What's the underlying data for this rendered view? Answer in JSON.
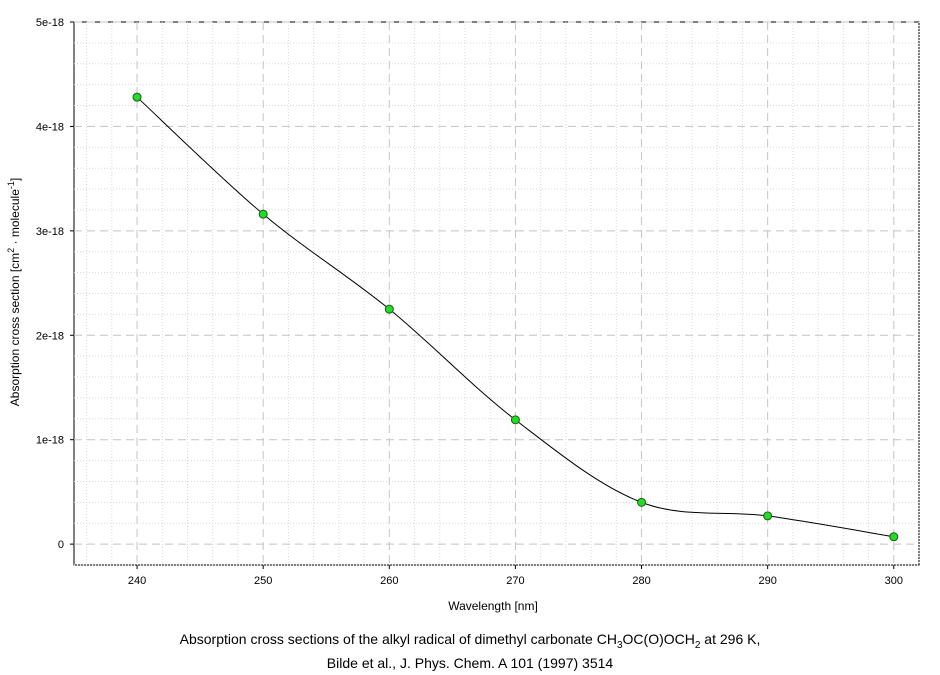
{
  "chart_data": {
    "type": "line",
    "xlabel": "Wavelength [nm]",
    "ylabel": {
      "prefix": "Absorption cross section [cm",
      "sup1": "2",
      "middle": " · molecule",
      "sup2": "-1",
      "suffix": "]"
    },
    "xlim": [
      235,
      302
    ],
    "ylim": [
      -2e-19,
      5e-18
    ],
    "x_ticks": [
      240,
      250,
      260,
      270,
      280,
      290,
      300
    ],
    "y_ticks": [
      {
        "value": 0,
        "label": "0"
      },
      {
        "value": 1e-18,
        "label": "1e-18"
      },
      {
        "value": 2e-18,
        "label": "2e-18"
      },
      {
        "value": 3e-18,
        "label": "3e-18"
      },
      {
        "value": 4e-18,
        "label": "4e-18"
      },
      {
        "value": 5e-18,
        "label": "5e-18"
      }
    ],
    "grid": true,
    "series": [
      {
        "x": [
          240,
          250,
          260,
          270,
          280,
          290,
          300
        ],
        "y": [
          4.28e-18,
          3.16e-18,
          2.25e-18,
          1.19e-18,
          4e-19,
          2.7e-19,
          7e-20
        ],
        "line_color": "#000000",
        "marker_color": "#22dd22"
      }
    ]
  },
  "caption": {
    "line1_pre": "Absorption cross sections of the alkyl radical of dimethyl carbonate CH",
    "line1_sub1": "3",
    "line1_mid": "OC(O)OCH",
    "line1_sub2": "2",
    "line1_post": " at 296 K,",
    "line2": "Bilde et al., J. Phys. Chem. A 101 (1997) 3514"
  }
}
